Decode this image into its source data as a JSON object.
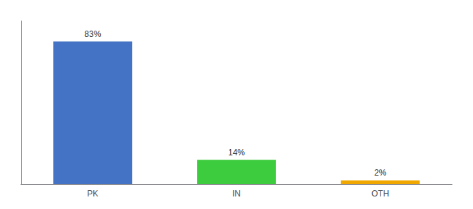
{
  "chart_data": {
    "type": "bar",
    "categories": [
      "PK",
      "IN",
      "OTH"
    ],
    "values": [
      83,
      14,
      2
    ],
    "value_labels": [
      "83%",
      "14%",
      "2%"
    ],
    "colors": [
      "#4472c4",
      "#3dcc3d",
      "#f0a800"
    ],
    "ylim": [
      0,
      95
    ],
    "data_labels": true,
    "tick_labels": "x",
    "grid": false
  }
}
